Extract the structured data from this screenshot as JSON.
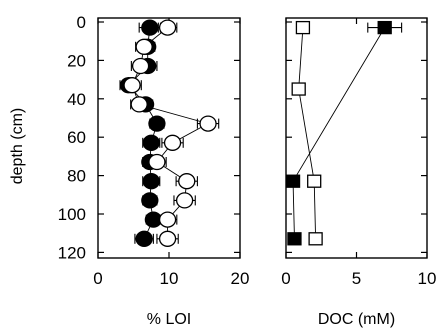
{
  "chart_data": [
    {
      "type": "scatter",
      "xlabel": "% LOI",
      "ylabel": "depth (cm)",
      "xlim": [
        0,
        20
      ],
      "ylim": [
        125,
        0
      ],
      "xticks": [
        0,
        10,
        20
      ],
      "yticks": [
        0,
        20,
        40,
        60,
        80,
        100,
        120
      ],
      "series": [
        {
          "marker": "filled-circle",
          "color": "#000000",
          "points": [
            {
              "depth": 5,
              "value": 7.3,
              "err": 1.5
            },
            {
              "depth": 15,
              "value": 7.0,
              "err": 1.0
            },
            {
              "depth": 25,
              "value": 7.0,
              "err": 1.3
            },
            {
              "depth": 35,
              "value": 4.3,
              "err": 1.2
            },
            {
              "depth": 45,
              "value": 6.7,
              "err": 1.0
            },
            {
              "depth": 55,
              "value": 8.3,
              "err": 1.0
            },
            {
              "depth": 65,
              "value": 7.5,
              "err": 1.2
            },
            {
              "depth": 75,
              "value": 7.3,
              "err": 1.0
            },
            {
              "depth": 85,
              "value": 7.5,
              "err": 1.2
            },
            {
              "depth": 95,
              "value": 7.3,
              "err": 1.0
            },
            {
              "depth": 105,
              "value": 7.8,
              "err": 1.0
            },
            {
              "depth": 115,
              "value": 6.5,
              "err": 1.3
            }
          ]
        },
        {
          "marker": "open-circle",
          "color": "#000000",
          "points": [
            {
              "depth": 5,
              "value": 9.8,
              "err": 1.3
            },
            {
              "depth": 15,
              "value": 6.5,
              "err": 1.2
            },
            {
              "depth": 25,
              "value": 6.0,
              "err": 1.3
            },
            {
              "depth": 35,
              "value": 4.8,
              "err": 1.3
            },
            {
              "depth": 45,
              "value": 5.8,
              "err": 1.2
            },
            {
              "depth": 55,
              "value": 15.5,
              "err": 1.5
            },
            {
              "depth": 65,
              "value": 10.5,
              "err": 1.5
            },
            {
              "depth": 75,
              "value": 8.3,
              "err": 1.3
            },
            {
              "depth": 85,
              "value": 12.5,
              "err": 1.5
            },
            {
              "depth": 95,
              "value": 12.2,
              "err": 1.5
            },
            {
              "depth": 105,
              "value": 9.8,
              "err": 1.3
            },
            {
              "depth": 115,
              "value": 9.8,
              "err": 1.5
            }
          ]
        }
      ]
    },
    {
      "type": "scatter",
      "xlabel": "DOC (mM)",
      "ylabel": "",
      "xlim": [
        0,
        10
      ],
      "ylim": [
        125,
        0
      ],
      "xticks": [
        0,
        5,
        10
      ],
      "yticks": [
        0,
        20,
        40,
        60,
        80,
        100,
        120
      ],
      "series": [
        {
          "marker": "filled-square",
          "color": "#000000",
          "points": [
            {
              "depth": 5,
              "value": 7.0,
              "err": 1.2
            },
            {
              "depth": 85,
              "value": 0.5,
              "err": 0.3
            },
            {
              "depth": 115,
              "value": 0.6,
              "err": 0.3
            }
          ]
        },
        {
          "marker": "open-square",
          "color": "#000000",
          "points": [
            {
              "depth": 5,
              "value": 1.2,
              "err": 0.3
            },
            {
              "depth": 37,
              "value": 0.9,
              "err": 0.3
            },
            {
              "depth": 85,
              "value": 2.0,
              "err": 0.3
            },
            {
              "depth": 115,
              "value": 2.1,
              "err": 0.3
            }
          ]
        }
      ]
    }
  ]
}
